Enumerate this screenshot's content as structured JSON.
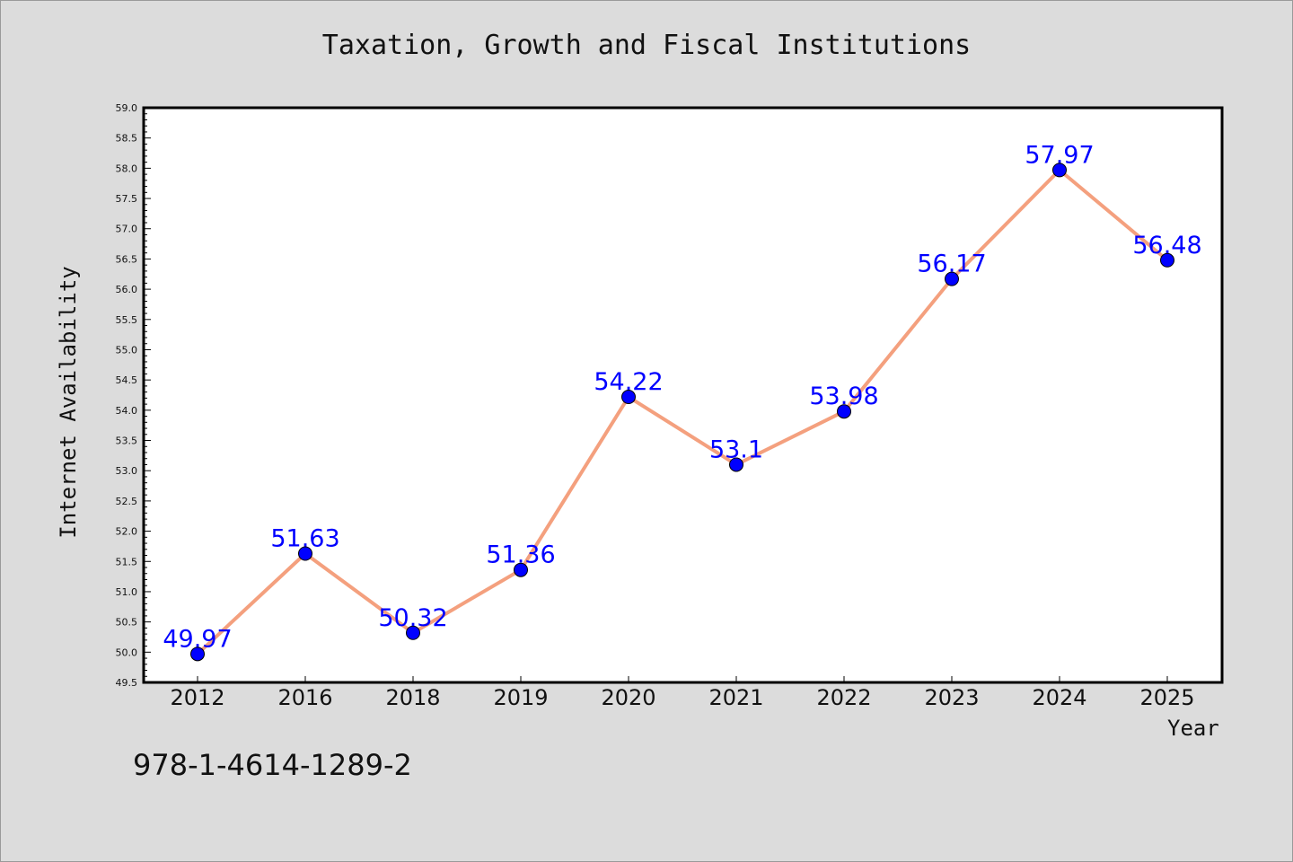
{
  "chart_data": {
    "type": "line",
    "title": "Taxation, Growth and Fiscal Institutions",
    "xlabel": "Year",
    "ylabel": "Internet Availability",
    "categories": [
      "2012",
      "2016",
      "2018",
      "2019",
      "2020",
      "2021",
      "2022",
      "2023",
      "2024",
      "2025"
    ],
    "series": [
      {
        "values": [
          49.97,
          51.63,
          50.32,
          51.36,
          54.22,
          53.1,
          53.98,
          56.17,
          57.97,
          56.48
        ],
        "labels": [
          "49.97",
          "51.63",
          "50.32",
          "51.36",
          "54.22",
          "53.1",
          "53.98",
          "56.17",
          "57.97",
          "56.48"
        ],
        "line_color": "#f4a07e",
        "marker_color": "#0000ff"
      }
    ],
    "ylim": [
      49.5,
      59.0
    ],
    "yticks": [
      "49.5",
      "50.0",
      "50.5",
      "51.0",
      "51.5",
      "52.0",
      "52.5",
      "53.0",
      "53.5",
      "54.0",
      "54.5",
      "55.0",
      "55.5",
      "56.0",
      "56.5",
      "57.0",
      "57.5",
      "58.0",
      "58.5",
      "59.0"
    ],
    "grid": false,
    "legend": "none"
  },
  "footer": {
    "isbn": "978-1-4614-1289-2"
  },
  "colors": {
    "background": "#dcdcdc",
    "plot_area": "#ffffff",
    "line": "#f4a07e",
    "markers": "#0000ff",
    "data_labels": "#0000ff"
  }
}
